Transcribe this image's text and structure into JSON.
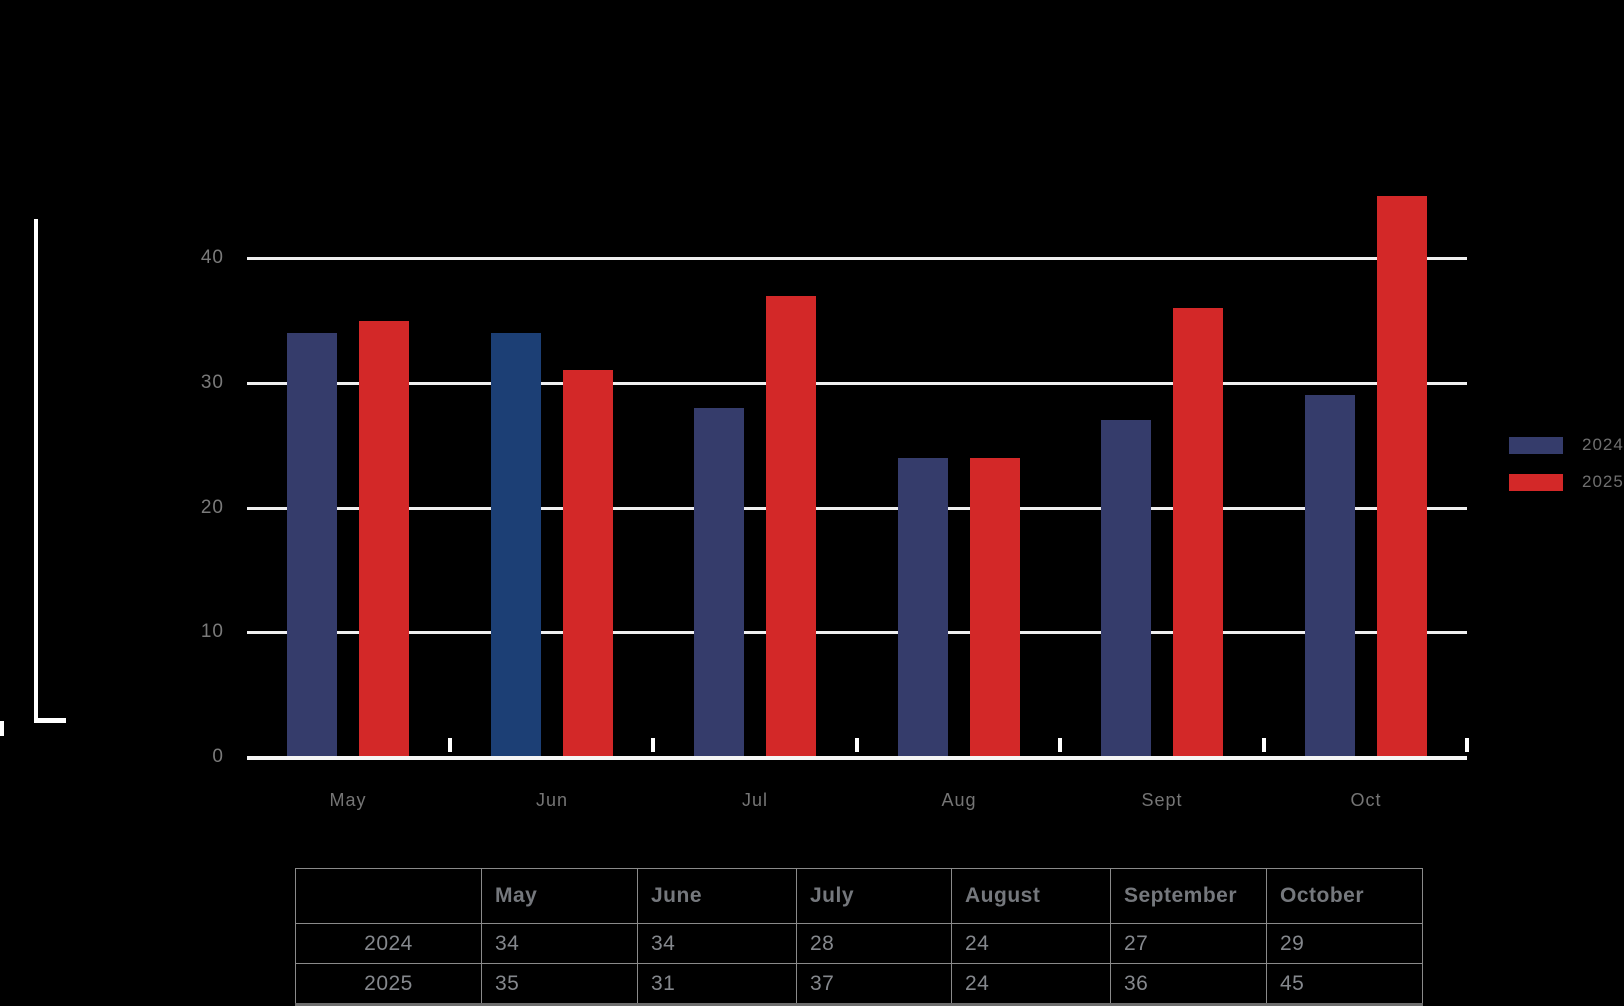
{
  "canvas": {
    "background": "#000000"
  },
  "chart_data": {
    "type": "bar",
    "title": "",
    "categories": [
      "May",
      "Jun",
      "Jul",
      "Aug",
      "Sept",
      "Oct"
    ],
    "series": [
      {
        "name": "2024",
        "color": "#353C6B",
        "values": [
          34,
          34,
          28,
          24,
          27,
          29
        ],
        "bar_color_overrides": {
          "1": "#1C3F75"
        }
      },
      {
        "name": "2025",
        "color": "#D32828",
        "values": [
          35,
          31,
          37,
          24,
          36,
          45
        ]
      }
    ],
    "ylim": [
      0,
      45
    ],
    "yticks": [
      0,
      10,
      20,
      30,
      40
    ],
    "grid": "horizontal",
    "gridline_color": "#EFEFEF",
    "axis_label_color": "#7A7A7A",
    "category_label_color": "#757575",
    "legend_position": "right",
    "legend": {
      "items": [
        {
          "label": "2024",
          "color": "#353C6B"
        },
        {
          "label": "2025",
          "color": "#D32828"
        }
      ],
      "text_color": "#6F6F6F"
    }
  },
  "table": {
    "columns": [
      "",
      "May",
      "June",
      "July",
      "August",
      "September",
      "October"
    ],
    "rows": [
      {
        "label": "2024",
        "values": [
          "34",
          "34",
          "28",
          "24",
          "27",
          "29"
        ]
      },
      {
        "label": "2025",
        "values": [
          "35",
          "31",
          "37",
          "24",
          "36",
          "45"
        ]
      }
    ],
    "border_color": "#8A8A8A",
    "header_text_color": "#75787D",
    "cell_text_color": "#85888D"
  }
}
